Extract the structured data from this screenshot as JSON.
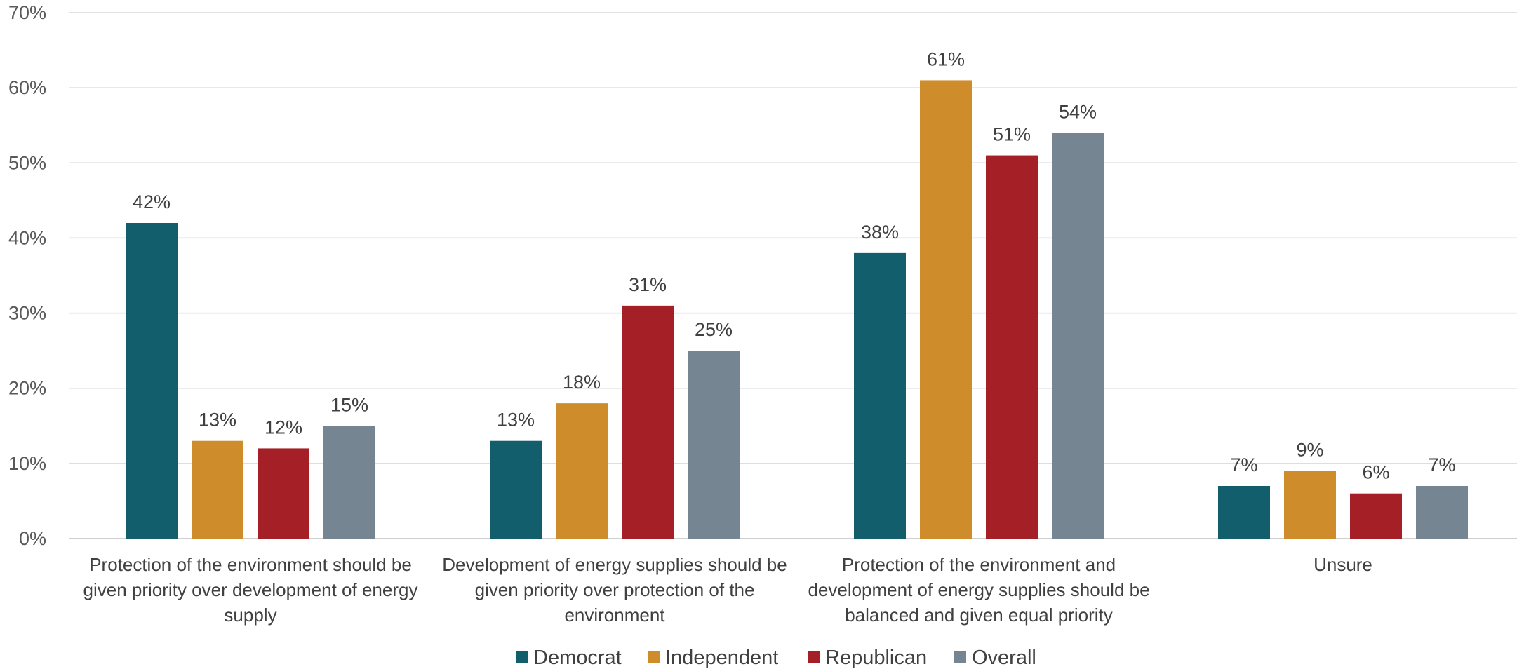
{
  "chart_data": {
    "type": "bar",
    "title": "",
    "xlabel": "",
    "ylabel": "",
    "ylim": [
      0,
      70
    ],
    "y_ticks": [
      0,
      10,
      20,
      30,
      40,
      50,
      60,
      70
    ],
    "y_tick_format": "percent",
    "grid": true,
    "legend_position": "bottom",
    "categories": [
      [
        "Protection of the environment should be",
        "given priority over development of energy",
        "supply"
      ],
      [
        "Development of energy supplies should be",
        "given priority over protection of the",
        "environment"
      ],
      [
        "Protection of the environment and",
        "development of energy supplies should be",
        "balanced and given equal priority"
      ],
      [
        "Unsure"
      ]
    ],
    "series": [
      {
        "name": "Democrat",
        "color": "#135e6c",
        "values": [
          42,
          13,
          38,
          7
        ]
      },
      {
        "name": "Independent",
        "color": "#ce8c2a",
        "values": [
          13,
          18,
          61,
          9
        ]
      },
      {
        "name": "Republican",
        "color": "#a52026",
        "values": [
          12,
          31,
          51,
          6
        ]
      },
      {
        "name": "Overall",
        "color": "#768592",
        "values": [
          15,
          25,
          54,
          7
        ]
      }
    ]
  }
}
